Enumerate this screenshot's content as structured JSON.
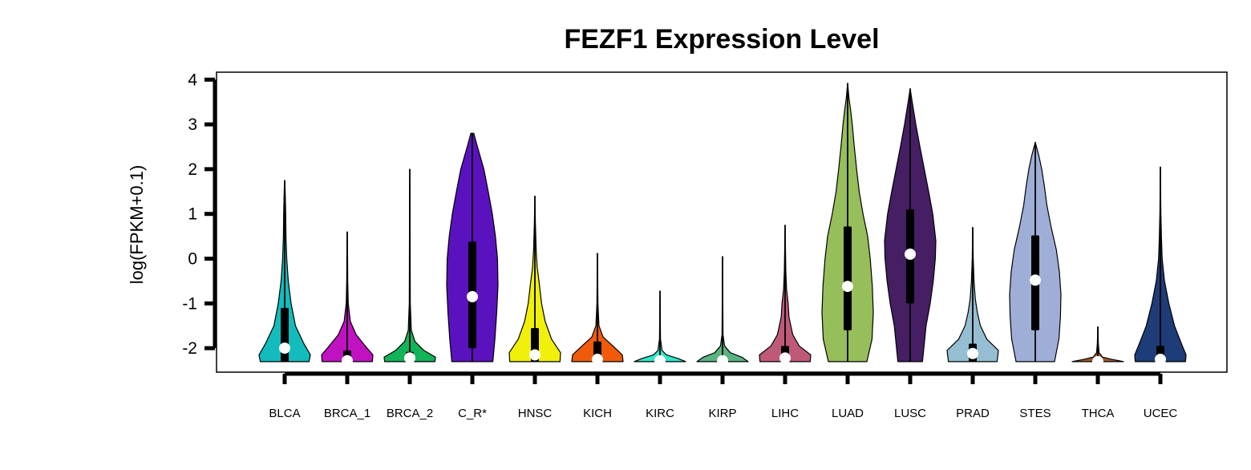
{
  "chart_data": {
    "type": "violin",
    "title": "FEZF1 Expression Level",
    "xlabel": "",
    "ylabel": "log(FPKM+0.1)",
    "ylim": [
      -2.55,
      4.15
    ],
    "yticks": [
      4,
      3,
      2,
      1,
      0,
      -1,
      -2
    ],
    "ytick_labels": [
      "4",
      "3",
      "2",
      "1",
      "0",
      "-1",
      "-2"
    ],
    "grid": false,
    "series": [
      {
        "category": "BLCA",
        "color": "#12bcbc",
        "min": -2.3,
        "max": 1.75,
        "q1": -2.3,
        "median": -2.0,
        "q3": -1.1,
        "whisker_top": 1.75,
        "density": [
          [
            -2.3,
            0.95
          ],
          [
            -2.15,
            1.0
          ],
          [
            -1.9,
            0.75
          ],
          [
            -1.5,
            0.42
          ],
          [
            -1.0,
            0.25
          ],
          [
            -0.5,
            0.14
          ],
          [
            0.0,
            0.08
          ],
          [
            0.5,
            0.05
          ],
          [
            1.0,
            0.04
          ],
          [
            1.5,
            0.02
          ],
          [
            1.75,
            0.0
          ]
        ]
      },
      {
        "category": "BRCA_1",
        "color": "#c012c0",
        "min": -2.3,
        "max": 0.6,
        "q1": -2.3,
        "median": -2.28,
        "q3": -2.05,
        "whisker_top": 0.6,
        "density": [
          [
            -2.3,
            0.98
          ],
          [
            -2.15,
            1.0
          ],
          [
            -1.95,
            0.7
          ],
          [
            -1.7,
            0.35
          ],
          [
            -1.4,
            0.12
          ],
          [
            -1.0,
            0.04
          ],
          [
            -0.5,
            0.02
          ],
          [
            0.0,
            0.015
          ],
          [
            0.6,
            0.0
          ]
        ]
      },
      {
        "category": "BRCA_2",
        "color": "#12b45a",
        "min": -2.3,
        "max": 2.0,
        "q1": -2.3,
        "median": -2.22,
        "q3": -2.08,
        "whisker_top": 2.0,
        "density": [
          [
            -2.3,
            0.98
          ],
          [
            -2.2,
            1.0
          ],
          [
            -2.05,
            0.55
          ],
          [
            -1.85,
            0.2
          ],
          [
            -1.6,
            0.06
          ],
          [
            -1.0,
            0.02
          ],
          [
            0.0,
            0.015
          ],
          [
            1.0,
            0.01
          ],
          [
            2.0,
            0.0
          ]
        ]
      },
      {
        "category": "C_R*",
        "color": "#5a12be",
        "min": -2.3,
        "max": 2.8,
        "q1": -2.0,
        "median": -0.85,
        "q3": 0.38,
        "whisker_top": 2.8,
        "density": [
          [
            -2.3,
            0.8
          ],
          [
            -1.8,
            0.88
          ],
          [
            -1.2,
            0.95
          ],
          [
            -0.6,
            1.0
          ],
          [
            0.0,
            0.98
          ],
          [
            0.5,
            0.9
          ],
          [
            1.0,
            0.78
          ],
          [
            1.5,
            0.62
          ],
          [
            2.0,
            0.45
          ],
          [
            2.5,
            0.2
          ],
          [
            2.75,
            0.08
          ],
          [
            2.8,
            0.06
          ]
        ]
      },
      {
        "category": "HNSC",
        "color": "#f0f00a",
        "min": -2.3,
        "max": 1.4,
        "q1": -2.3,
        "median": -2.15,
        "q3": -1.55,
        "whisker_top": 1.4,
        "density": [
          [
            -2.3,
            0.98
          ],
          [
            -2.1,
            1.0
          ],
          [
            -1.8,
            0.65
          ],
          [
            -1.4,
            0.4
          ],
          [
            -1.0,
            0.26
          ],
          [
            -0.5,
            0.16
          ],
          [
            -0.2,
            0.09
          ],
          [
            0.2,
            0.05
          ],
          [
            0.8,
            0.02
          ],
          [
            1.4,
            0.0
          ]
        ]
      },
      {
        "category": "KICH",
        "color": "#f05a0a",
        "min": -2.3,
        "max": 0.12,
        "q1": -2.3,
        "median": -2.25,
        "q3": -1.85,
        "whisker_top": 0.12,
        "density": [
          [
            -2.3,
            1.0
          ],
          [
            -2.15,
            0.97
          ],
          [
            -1.95,
            0.6
          ],
          [
            -1.75,
            0.22
          ],
          [
            -1.5,
            0.06
          ],
          [
            -1.0,
            0.02
          ],
          [
            0.12,
            0.0
          ]
        ]
      },
      {
        "category": "KIRC",
        "color": "#32e6c8",
        "min": -2.3,
        "max": -0.72,
        "q1": -2.3,
        "median": -2.28,
        "q3": -2.22,
        "whisker_top": -0.72,
        "density": [
          [
            -2.3,
            1.0
          ],
          [
            -2.23,
            0.7
          ],
          [
            -2.15,
            0.25
          ],
          [
            -2.05,
            0.08
          ],
          [
            -1.8,
            0.02
          ],
          [
            -0.72,
            0.0
          ]
        ]
      },
      {
        "category": "KIRP",
        "color": "#5ab482",
        "min": -2.3,
        "max": 0.05,
        "q1": -2.3,
        "median": -2.28,
        "q3": -2.2,
        "whisker_top": 0.05,
        "density": [
          [
            -2.3,
            1.0
          ],
          [
            -2.2,
            0.75
          ],
          [
            -2.1,
            0.3
          ],
          [
            -1.95,
            0.08
          ],
          [
            -1.7,
            0.02
          ],
          [
            0.05,
            0.0
          ]
        ]
      },
      {
        "category": "LIHC",
        "color": "#be5a78",
        "min": -2.3,
        "max": 0.75,
        "q1": -2.3,
        "median": -2.22,
        "q3": -1.95,
        "whisker_top": 0.75,
        "density": [
          [
            -2.3,
            0.98
          ],
          [
            -2.15,
            1.0
          ],
          [
            -1.95,
            0.55
          ],
          [
            -1.7,
            0.3
          ],
          [
            -1.3,
            0.15
          ],
          [
            -1.0,
            0.12
          ],
          [
            -0.7,
            0.06
          ],
          [
            -0.3,
            0.03
          ],
          [
            0.75,
            0.0
          ]
        ]
      },
      {
        "category": "LUAD",
        "color": "#96be5a",
        "min": -2.3,
        "max": 3.92,
        "q1": -1.6,
        "median": -0.62,
        "q3": 0.72,
        "whisker_top": 3.92,
        "density": [
          [
            -2.3,
            0.75
          ],
          [
            -1.8,
            0.95
          ],
          [
            -1.2,
            1.0
          ],
          [
            -0.6,
            0.96
          ],
          [
            0.0,
            0.88
          ],
          [
            0.5,
            0.78
          ],
          [
            1.0,
            0.6
          ],
          [
            1.5,
            0.45
          ],
          [
            2.0,
            0.35
          ],
          [
            2.5,
            0.26
          ],
          [
            3.0,
            0.18
          ],
          [
            3.3,
            0.12
          ],
          [
            3.6,
            0.05
          ],
          [
            3.92,
            0.0
          ]
        ]
      },
      {
        "category": "LUSC",
        "color": "#461e64",
        "min": -2.3,
        "max": 3.8,
        "q1": -1.0,
        "median": 0.1,
        "q3": 1.1,
        "whisker_top": 3.8,
        "density": [
          [
            -2.3,
            0.48
          ],
          [
            -1.5,
            0.62
          ],
          [
            -1.0,
            0.78
          ],
          [
            -0.5,
            0.9
          ],
          [
            0.0,
            0.98
          ],
          [
            0.4,
            1.0
          ],
          [
            1.0,
            0.88
          ],
          [
            1.5,
            0.72
          ],
          [
            2.0,
            0.55
          ],
          [
            2.5,
            0.38
          ],
          [
            3.0,
            0.22
          ],
          [
            3.5,
            0.08
          ],
          [
            3.8,
            0.0
          ]
        ]
      },
      {
        "category": "PRAD",
        "color": "#96bed2",
        "min": -2.3,
        "max": 0.7,
        "q1": -2.3,
        "median": -2.12,
        "q3": -1.9,
        "whisker_top": 0.7,
        "density": [
          [
            -2.3,
            0.95
          ],
          [
            -2.05,
            1.0
          ],
          [
            -1.8,
            0.55
          ],
          [
            -1.5,
            0.3
          ],
          [
            -1.2,
            0.18
          ],
          [
            -0.9,
            0.1
          ],
          [
            -0.5,
            0.05
          ],
          [
            0.0,
            0.02
          ],
          [
            0.7,
            0.0
          ]
        ]
      },
      {
        "category": "STES",
        "color": "#9eaed6",
        "min": -2.3,
        "max": 2.6,
        "q1": -1.6,
        "median": -0.48,
        "q3": 0.52,
        "whisker_top": 2.6,
        "density": [
          [
            -2.3,
            0.75
          ],
          [
            -1.8,
            0.92
          ],
          [
            -1.3,
            0.98
          ],
          [
            -0.8,
            1.0
          ],
          [
            -0.3,
            0.94
          ],
          [
            0.2,
            0.82
          ],
          [
            0.7,
            0.62
          ],
          [
            1.2,
            0.45
          ],
          [
            1.6,
            0.36
          ],
          [
            2.0,
            0.25
          ],
          [
            2.3,
            0.14
          ],
          [
            2.6,
            0.0
          ]
        ]
      },
      {
        "category": "THCA",
        "color": "#a05a32",
        "min": -2.3,
        "max": -1.52,
        "q1": -2.3,
        "median": -2.3,
        "q3": -2.26,
        "whisker_top": -1.52,
        "density": [
          [
            -2.3,
            1.0
          ],
          [
            -2.25,
            0.55
          ],
          [
            -2.2,
            0.18
          ],
          [
            -2.1,
            0.05
          ],
          [
            -1.9,
            0.02
          ],
          [
            -1.52,
            0.0
          ]
        ]
      },
      {
        "category": "UCEC",
        "color": "#1e3c78",
        "min": -2.3,
        "max": 2.05,
        "q1": -2.3,
        "median": -2.25,
        "q3": -1.95,
        "whisker_top": 2.05,
        "density": [
          [
            -2.3,
            0.98
          ],
          [
            -2.15,
            1.0
          ],
          [
            -1.9,
            0.82
          ],
          [
            -1.5,
            0.55
          ],
          [
            -1.0,
            0.33
          ],
          [
            -0.5,
            0.16
          ],
          [
            0.0,
            0.07
          ],
          [
            0.5,
            0.04
          ],
          [
            1.0,
            0.02
          ],
          [
            2.05,
            0.0
          ]
        ]
      }
    ]
  }
}
